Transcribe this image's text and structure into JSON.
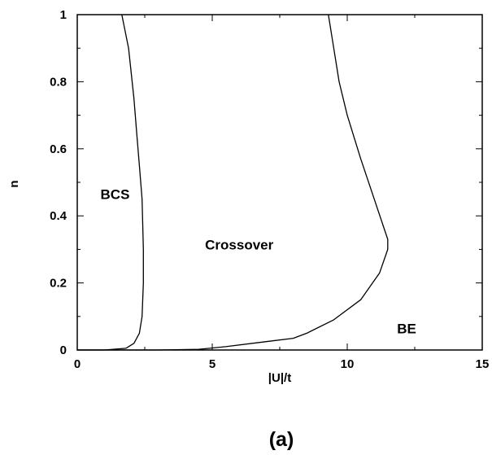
{
  "chart_data": {
    "type": "line",
    "title": "",
    "xlabel": "|U|/t",
    "ylabel": "n",
    "xlim": [
      0,
      15
    ],
    "ylim": [
      0,
      1
    ],
    "x_ticks": [
      "0",
      "5",
      "10",
      "15"
    ],
    "y_ticks": [
      "0",
      "0.2",
      "0.4",
      "0.6",
      "0.8",
      "1"
    ],
    "grid": false,
    "series": [
      {
        "x": [
          0,
          1.0,
          1.8,
          2.1,
          2.3,
          2.4,
          2.45,
          2.45,
          2.4,
          2.3,
          2.2,
          2.1,
          1.9,
          1.65
        ],
        "y": [
          0,
          0.0,
          0.005,
          0.02,
          0.05,
          0.1,
          0.2,
          0.3,
          0.45,
          0.55,
          0.65,
          0.75,
          0.9,
          1.0
        ]
      },
      {
        "x": [
          0,
          3.0,
          4.5,
          5.5,
          7.0,
          8.0,
          8.5,
          9.5,
          10.5,
          11.2,
          11.5,
          11.5,
          11.0,
          10.5,
          10.0,
          9.7,
          9.5,
          9.3
        ],
        "y": [
          0,
          0.0,
          0.002,
          0.01,
          0.025,
          0.035,
          0.05,
          0.09,
          0.15,
          0.23,
          0.3,
          0.33,
          0.45,
          0.57,
          0.7,
          0.8,
          0.9,
          1.0
        ]
      }
    ],
    "annotations": [
      {
        "text": "BCS",
        "x": 1.4,
        "y": 0.45
      },
      {
        "text": "Crossover",
        "x": 6.0,
        "y": 0.3
      },
      {
        "text": "BE",
        "x": 12.2,
        "y": 0.05
      }
    ]
  },
  "caption": "(a)"
}
